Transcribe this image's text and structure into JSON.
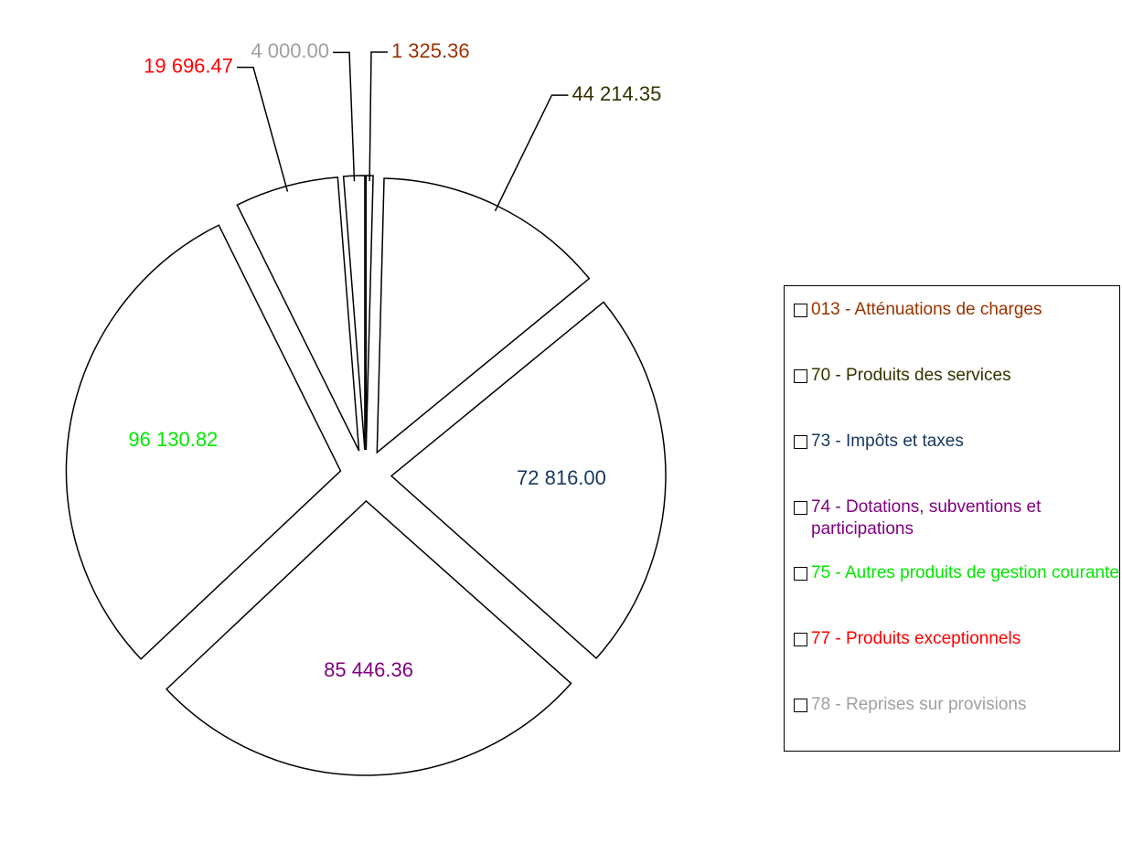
{
  "chart_data": {
    "type": "pie",
    "categories": [
      "013 - Atténuations de charges",
      "70 - Produits des services",
      "73 - Impôts et taxes",
      "74 - Dotations, subventions et participations",
      "75 - Autres produits de gestion courante",
      "77 - Produits exceptionnels",
      "78 - Reprises sur provisions"
    ],
    "values": [
      1325.36,
      44214.35,
      72816.0,
      85446.36,
      96130.82,
      19696.47,
      4000.0
    ],
    "value_labels": [
      "1 325.36",
      "44 214.35",
      "72 816.00",
      "85 446.36",
      "96 130.82",
      "19 696.47",
      "4 000.00"
    ],
    "colors": [
      "#993300",
      "#333300",
      "#17375e",
      "#800080",
      "#00e600",
      "#ff0000",
      "#a0a0a0"
    ],
    "legend": "right"
  }
}
